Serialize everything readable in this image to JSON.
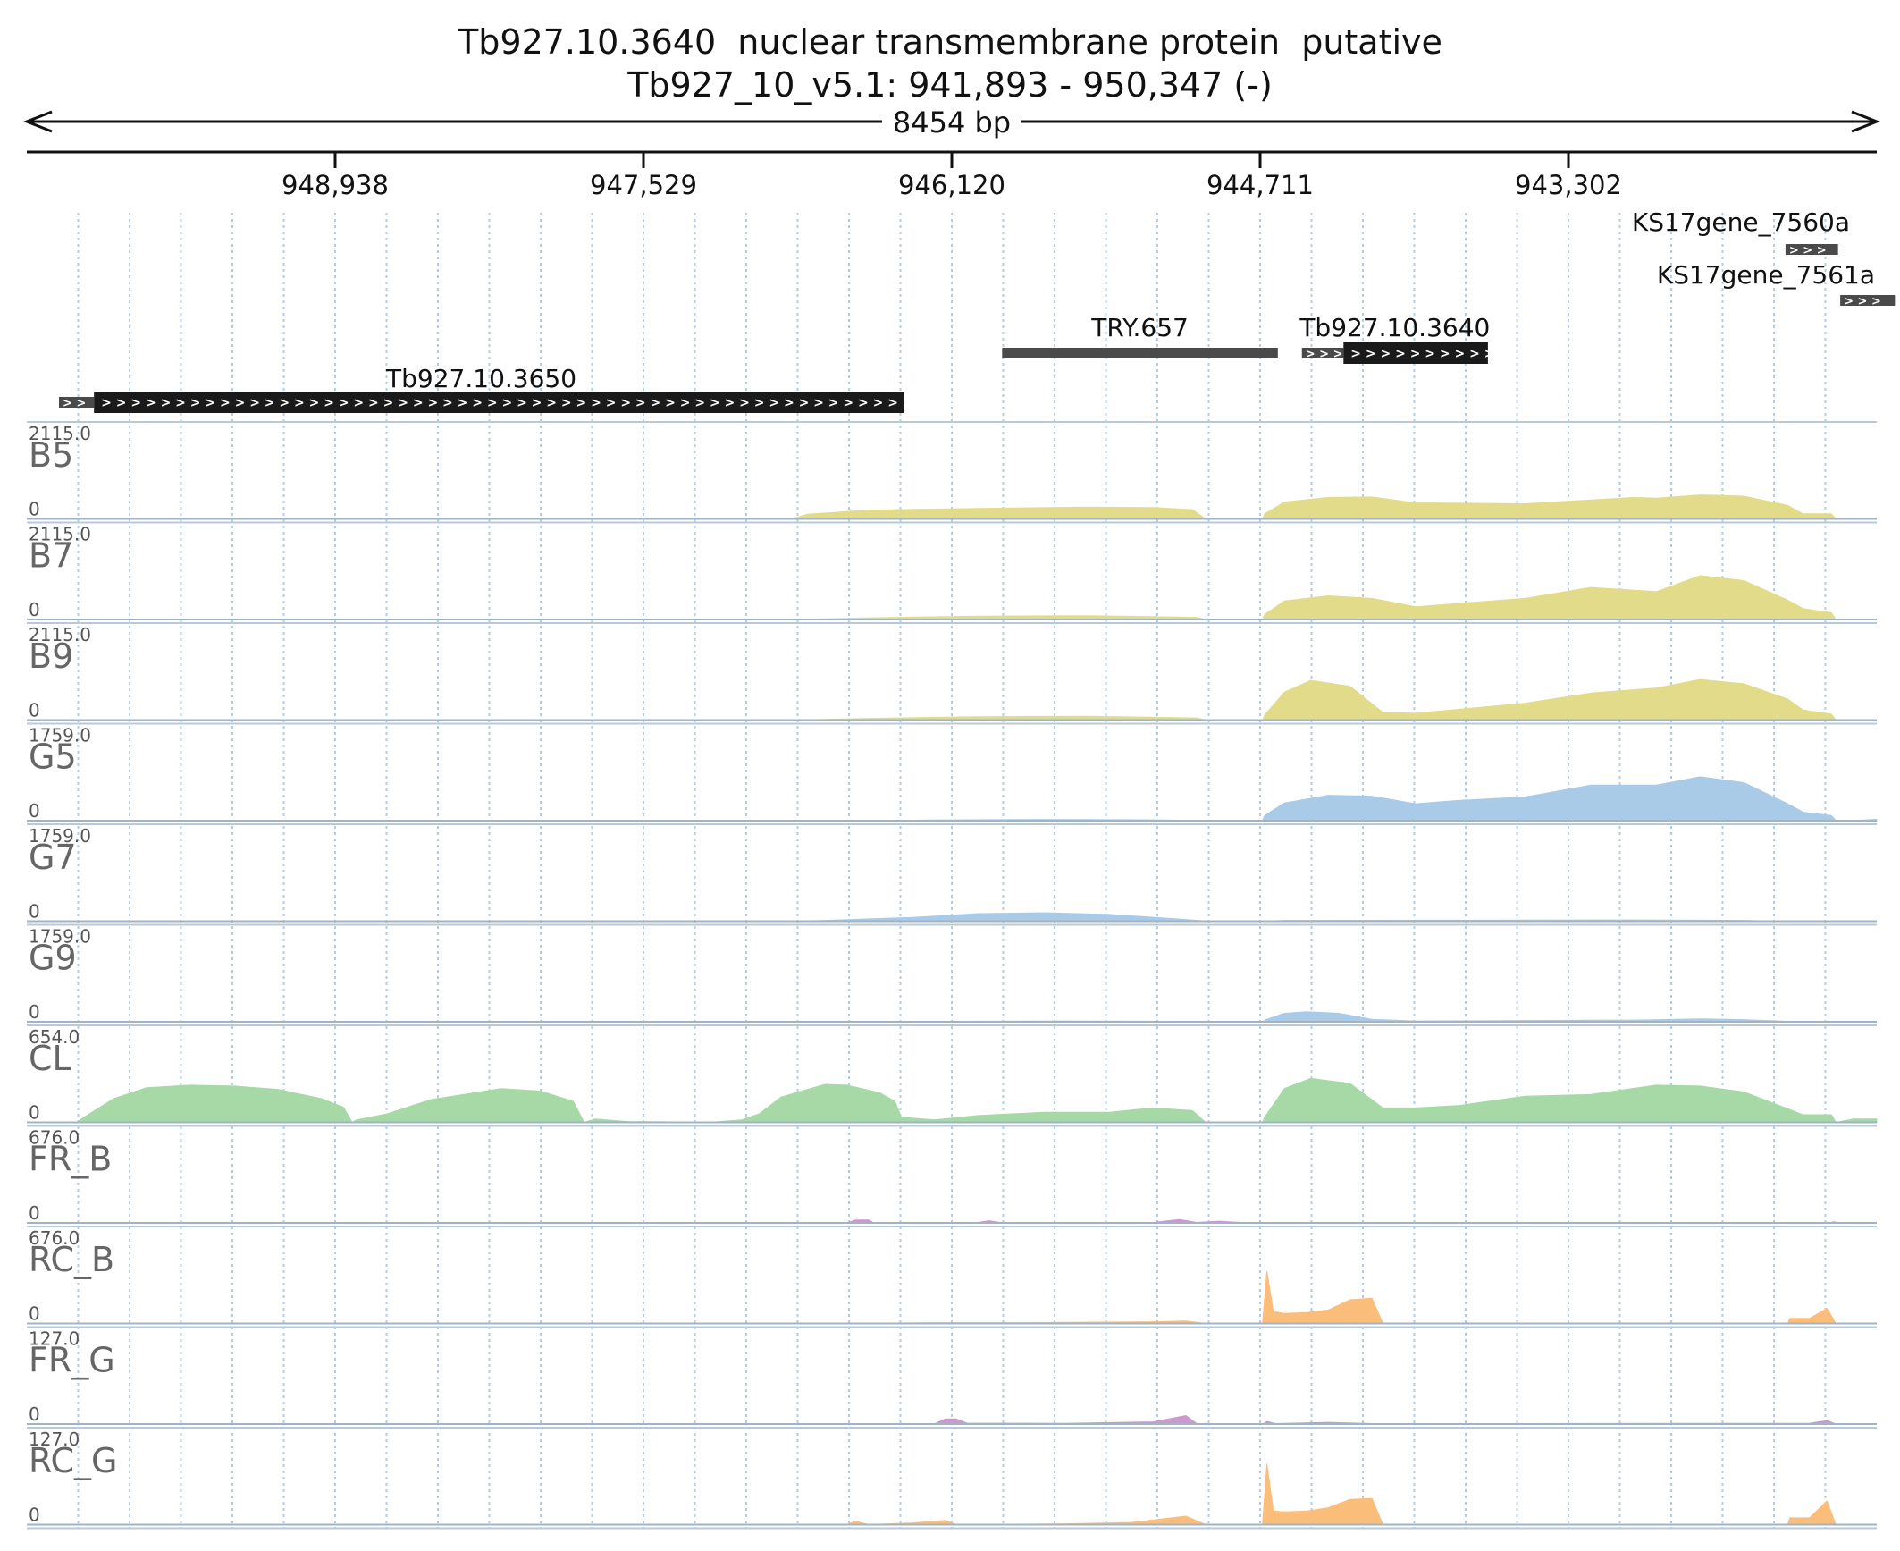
{
  "chart_data": {
    "type": "area",
    "title": "Tb927.10.3640  nuclear transmembrane protein  putative",
    "subtitle": "Tb927_10_v5.1: 941,893 - 950,347 (-)",
    "span_label": "8454 bp",
    "x_range": [
      950347,
      941893
    ],
    "x_ticks": [
      948938,
      947529,
      946120,
      944711,
      943302
    ],
    "x_tick_labels": [
      "948,938",
      "947,529",
      "946,120",
      "944,711",
      "943,302"
    ],
    "genes": [
      {
        "name": "KS17gene_7560a",
        "start": 942310,
        "end": 942070,
        "row": 0
      },
      {
        "name": "KS17gene_7561a",
        "start": 942060,
        "end": 941810,
        "row": 1
      },
      {
        "name": "TRY.657",
        "start": 945890,
        "end": 944630,
        "row": 2,
        "noncoding": true
      },
      {
        "name": "Tb927.10.3640",
        "start": 944520,
        "end": 943670,
        "utr_end": 944330,
        "row": 2
      },
      {
        "name": "Tb927.10.3650",
        "start": 950200,
        "end": 946340,
        "utr_end": 950040,
        "row": 3
      }
    ],
    "tracks": [
      {
        "name": "B5",
        "ymax_label": "2115.0",
        "ymin_label": "0",
        "color": "#e2dc8a",
        "profile": [
          [
            946850,
            0
          ],
          [
            946780,
            55
          ],
          [
            946500,
            105
          ],
          [
            946000,
            125
          ],
          [
            945500,
            140
          ],
          [
            945200,
            135
          ],
          [
            945020,
            110
          ],
          [
            944960,
            0
          ],
          [
            944700,
            0
          ],
          [
            944690,
            60
          ],
          [
            944600,
            200
          ],
          [
            944400,
            255
          ],
          [
            944200,
            260
          ],
          [
            944000,
            190
          ],
          [
            943500,
            180
          ],
          [
            943000,
            255
          ],
          [
            942900,
            245
          ],
          [
            942700,
            285
          ],
          [
            942500,
            270
          ],
          [
            942300,
            160
          ],
          [
            942230,
            60
          ],
          [
            942100,
            60
          ],
          [
            942080,
            0
          ]
        ]
      },
      {
        "name": "B7",
        "ymax_label": "2115.0",
        "ymin_label": "0",
        "color": "#e2dc8a",
        "profile": [
          [
            946850,
            0
          ],
          [
            946500,
            20
          ],
          [
            946000,
            40
          ],
          [
            945500,
            45
          ],
          [
            945000,
            25
          ],
          [
            944960,
            0
          ],
          [
            944700,
            0
          ],
          [
            944690,
            60
          ],
          [
            944600,
            220
          ],
          [
            944400,
            280
          ],
          [
            944200,
            250
          ],
          [
            944000,
            150
          ],
          [
            943800,
            190
          ],
          [
            943500,
            250
          ],
          [
            943200,
            380
          ],
          [
            942900,
            330
          ],
          [
            942700,
            520
          ],
          [
            942500,
            460
          ],
          [
            942300,
            230
          ],
          [
            942230,
            130
          ],
          [
            942100,
            80
          ],
          [
            942080,
            0
          ]
        ]
      },
      {
        "name": "B9",
        "ymax_label": "2115.0",
        "ymin_label": "0",
        "color": "#e2dc8a",
        "profile": [
          [
            946850,
            0
          ],
          [
            946500,
            20
          ],
          [
            946000,
            40
          ],
          [
            945500,
            45
          ],
          [
            945000,
            25
          ],
          [
            944960,
            0
          ],
          [
            944700,
            0
          ],
          [
            944690,
            60
          ],
          [
            944600,
            330
          ],
          [
            944480,
            470
          ],
          [
            944300,
            400
          ],
          [
            944150,
            90
          ],
          [
            944000,
            80
          ],
          [
            943500,
            200
          ],
          [
            943200,
            320
          ],
          [
            942900,
            380
          ],
          [
            942700,
            480
          ],
          [
            942500,
            430
          ],
          [
            942300,
            250
          ],
          [
            942230,
            120
          ],
          [
            942100,
            70
          ],
          [
            942080,
            0
          ]
        ]
      },
      {
        "name": "G5",
        "ymax_label": "1759.0",
        "ymin_label": "0",
        "color": "#a9cbe8",
        "profile": [
          [
            946400,
            0
          ],
          [
            946200,
            8
          ],
          [
            945700,
            15
          ],
          [
            945200,
            10
          ],
          [
            944960,
            0
          ],
          [
            944700,
            0
          ],
          [
            944690,
            60
          ],
          [
            944600,
            210
          ],
          [
            944400,
            300
          ],
          [
            944200,
            290
          ],
          [
            944000,
            200
          ],
          [
            943800,
            240
          ],
          [
            943500,
            280
          ],
          [
            943200,
            420
          ],
          [
            942900,
            420
          ],
          [
            942700,
            520
          ],
          [
            942500,
            450
          ],
          [
            942300,
            200
          ],
          [
            942230,
            100
          ],
          [
            942100,
            60
          ],
          [
            942080,
            0
          ],
          [
            942000,
            0
          ],
          [
            941900,
            15
          ],
          [
            941893,
            15
          ]
        ]
      },
      {
        "name": "G7",
        "ymax_label": "1759.0",
        "ymin_label": "0",
        "color": "#a9cbe8",
        "profile": [
          [
            946850,
            0
          ],
          [
            946700,
            10
          ],
          [
            946300,
            45
          ],
          [
            946000,
            90
          ],
          [
            945700,
            100
          ],
          [
            945400,
            80
          ],
          [
            945100,
            30
          ],
          [
            944950,
            0
          ],
          [
            944700,
            0
          ],
          [
            944600,
            10
          ],
          [
            944000,
            12
          ],
          [
            943000,
            15
          ],
          [
            942500,
            10
          ],
          [
            942300,
            0
          ]
        ]
      },
      {
        "name": "G9",
        "ymax_label": "1759.0",
        "ymin_label": "0",
        "color": "#a9cbe8",
        "profile": [
          [
            946400,
            0
          ],
          [
            946100,
            5
          ],
          [
            945600,
            10
          ],
          [
            945100,
            5
          ],
          [
            944950,
            0
          ],
          [
            944700,
            0
          ],
          [
            944690,
            20
          ],
          [
            944600,
            100
          ],
          [
            944500,
            120
          ],
          [
            944350,
            100
          ],
          [
            944200,
            30
          ],
          [
            944000,
            10
          ],
          [
            943000,
            20
          ],
          [
            942700,
            35
          ],
          [
            942500,
            25
          ],
          [
            942300,
            5
          ],
          [
            942200,
            0
          ]
        ]
      },
      {
        "name": "CL",
        "ymax_label": "654.0",
        "ymin_label": "0",
        "color": "#a6d9a6",
        "profile": [
          [
            950120,
            0
          ],
          [
            950080,
            70
          ],
          [
            949950,
            280
          ],
          [
            949800,
            410
          ],
          [
            949600,
            440
          ],
          [
            949400,
            430
          ],
          [
            949200,
            390
          ],
          [
            949000,
            280
          ],
          [
            948900,
            180
          ],
          [
            948860,
            0
          ],
          [
            948840,
            30
          ],
          [
            948700,
            100
          ],
          [
            948500,
            270
          ],
          [
            948300,
            350
          ],
          [
            948180,
            400
          ],
          [
            948000,
            370
          ],
          [
            947850,
            250
          ],
          [
            947800,
            0
          ],
          [
            947750,
            40
          ],
          [
            947600,
            10
          ],
          [
            947400,
            5
          ],
          [
            947200,
            5
          ],
          [
            947080,
            30
          ],
          [
            947000,
            100
          ],
          [
            946900,
            300
          ],
          [
            946700,
            450
          ],
          [
            946600,
            440
          ],
          [
            946450,
            350
          ],
          [
            946380,
            250
          ],
          [
            946350,
            60
          ],
          [
            946200,
            30
          ],
          [
            946000,
            80
          ],
          [
            945700,
            120
          ],
          [
            945400,
            120
          ],
          [
            945200,
            170
          ],
          [
            945020,
            140
          ],
          [
            944960,
            0
          ],
          [
            944700,
            0
          ],
          [
            944690,
            60
          ],
          [
            944600,
            400
          ],
          [
            944480,
            520
          ],
          [
            944300,
            460
          ],
          [
            944150,
            170
          ],
          [
            944000,
            170
          ],
          [
            943800,
            200
          ],
          [
            943500,
            310
          ],
          [
            943200,
            330
          ],
          [
            942900,
            440
          ],
          [
            942700,
            430
          ],
          [
            942500,
            360
          ],
          [
            942300,
            160
          ],
          [
            942230,
            90
          ],
          [
            942100,
            90
          ],
          [
            942080,
            0
          ],
          [
            942000,
            40
          ],
          [
            941893,
            40
          ]
        ]
      },
      {
        "name": "FR_B",
        "ymax_label": "676.0",
        "ymin_label": "0",
        "color": "#cc99cc",
        "profile": [
          [
            946600,
            0
          ],
          [
            946560,
            35
          ],
          [
            946500,
            35
          ],
          [
            946480,
            5
          ],
          [
            946000,
            5
          ],
          [
            945950,
            25
          ],
          [
            945900,
            5
          ],
          [
            945200,
            5
          ],
          [
            945080,
            40
          ],
          [
            945000,
            5
          ],
          [
            944900,
            20
          ],
          [
            944800,
            5
          ],
          [
            944700,
            0
          ],
          [
            944200,
            5
          ],
          [
            943500,
            3
          ],
          [
            942100,
            5
          ],
          [
            942090,
            15
          ],
          [
            942070,
            0
          ]
        ]
      },
      {
        "name": "RC_B",
        "ymax_label": "676.0",
        "ymin_label": "0",
        "color": "#fbbe7a",
        "profile": [
          [
            946600,
            0
          ],
          [
            946200,
            10
          ],
          [
            945800,
            10
          ],
          [
            945200,
            20
          ],
          [
            945050,
            30
          ],
          [
            944960,
            0
          ],
          [
            944700,
            0
          ],
          [
            944680,
            620
          ],
          [
            944650,
            140
          ],
          [
            944600,
            120
          ],
          [
            944500,
            130
          ],
          [
            944400,
            160
          ],
          [
            944300,
            280
          ],
          [
            944200,
            300
          ],
          [
            944150,
            0
          ],
          [
            942300,
            0
          ],
          [
            942290,
            60
          ],
          [
            942200,
            60
          ],
          [
            942120,
            180
          ],
          [
            942080,
            0
          ]
        ]
      },
      {
        "name": "FR_G",
        "ymax_label": "127.0",
        "ymin_label": "0",
        "color": "#cc99cc",
        "profile": [
          [
            946200,
            0
          ],
          [
            946150,
            60
          ],
          [
            946100,
            60
          ],
          [
            946050,
            10
          ],
          [
            945600,
            8
          ],
          [
            945200,
            25
          ],
          [
            945050,
            100
          ],
          [
            945000,
            5
          ],
          [
            944950,
            0
          ],
          [
            944700,
            0
          ],
          [
            944680,
            30
          ],
          [
            944640,
            5
          ],
          [
            944400,
            20
          ],
          [
            944200,
            5
          ],
          [
            943500,
            5
          ],
          [
            942200,
            10
          ],
          [
            942120,
            40
          ],
          [
            942080,
            0
          ]
        ]
      },
      {
        "name": "RC_G",
        "ymax_label": "127.0",
        "ymin_label": "0",
        "color": "#fbbe7a",
        "profile": [
          [
            946600,
            0
          ],
          [
            946560,
            40
          ],
          [
            946500,
            0
          ],
          [
            946300,
            20
          ],
          [
            946150,
            50
          ],
          [
            946100,
            0
          ],
          [
            945600,
            10
          ],
          [
            945300,
            25
          ],
          [
            945050,
            100
          ],
          [
            944960,
            0
          ],
          [
            944700,
            0
          ],
          [
            944680,
            720
          ],
          [
            944650,
            160
          ],
          [
            944600,
            150
          ],
          [
            944500,
            160
          ],
          [
            944400,
            200
          ],
          [
            944300,
            300
          ],
          [
            944200,
            310
          ],
          [
            944150,
            0
          ],
          [
            942300,
            0
          ],
          [
            942290,
            80
          ],
          [
            942200,
            80
          ],
          [
            942120,
            280
          ],
          [
            942080,
            0
          ]
        ]
      }
    ]
  }
}
